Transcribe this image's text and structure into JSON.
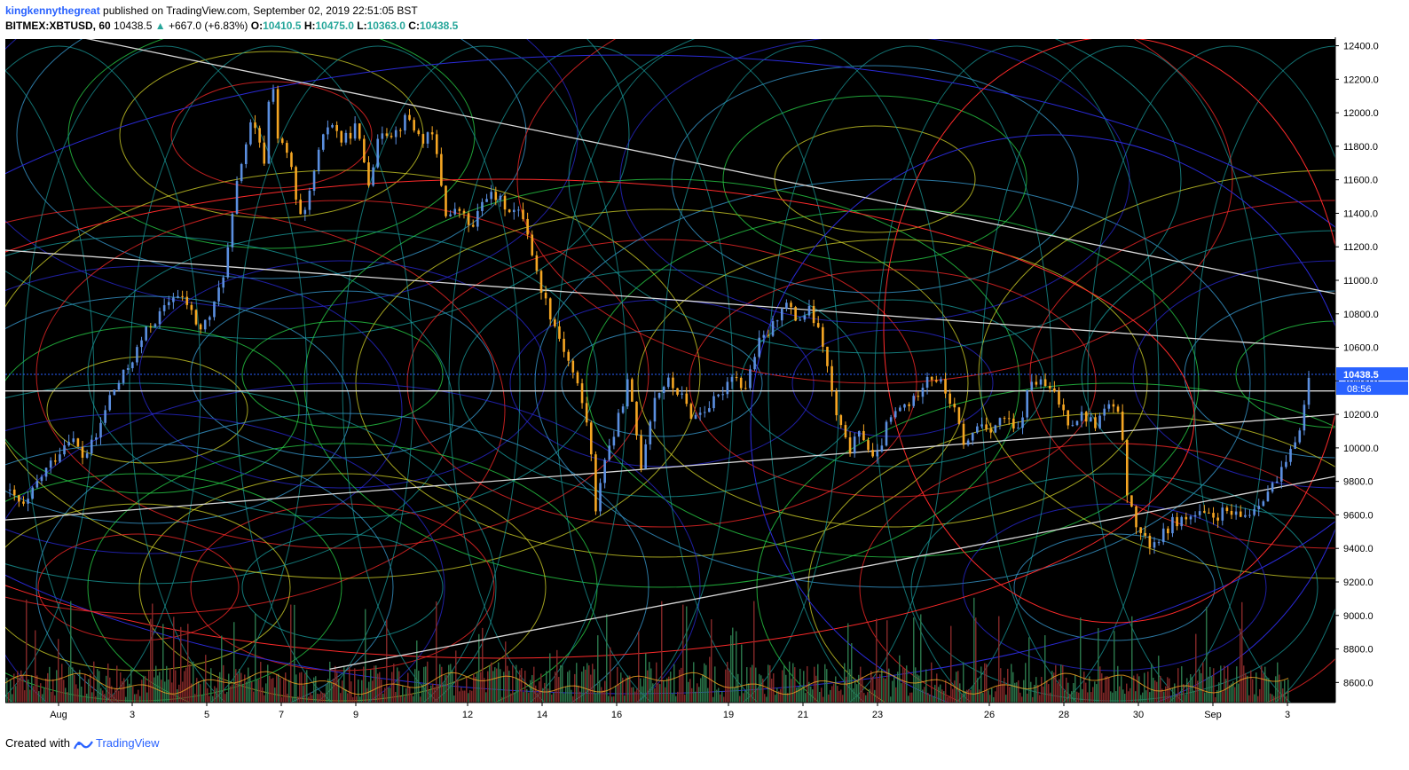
{
  "header": {
    "author": "kingkennythegreat",
    "published_text": " published on TradingView.com, September 02, 2019 22:51:05 BST",
    "symbol": "BITMEX:XBTUSD, 60",
    "last": "10438.5",
    "change": "+667.0 (+6.83%)",
    "o_label": "O:",
    "o_value": "10410.5",
    "h_label": "H:",
    "h_value": "10475.0",
    "l_label": "L:",
    "l_value": "10363.0",
    "c_label": "C:",
    "c_value": "10438.5"
  },
  "footer": {
    "created_with": "Created with",
    "brand": "TradingView"
  },
  "colors": {
    "background": "#000000",
    "up_candle": "#5b8fe0",
    "down_candle": "#f5a623",
    "volume_up": "#2e7d4f",
    "volume_down": "#8b2a2a",
    "price_tag": "#2962ff"
  },
  "chart_data": {
    "type": "candlestick",
    "symbol": "BITMEX:XBTUSD",
    "interval": "60",
    "ylim": [
      8480,
      12440
    ],
    "y_ticks": [
      "12400.0",
      "12200.0",
      "12000.0",
      "11800.0",
      "11600.0",
      "11400.0",
      "11200.0",
      "11000.0",
      "10800.0",
      "10600.0",
      "10400.0",
      "10200.0",
      "10000.0",
      "9800.0",
      "9600.0",
      "9400.0",
      "9200.0",
      "9000.0",
      "8800.0",
      "8600.0"
    ],
    "x_ticks": [
      "Aug",
      "3",
      "5",
      "7",
      "9",
      "12",
      "14",
      "16",
      "19",
      "21",
      "23",
      "26",
      "28",
      "30",
      "Sep",
      "3"
    ],
    "last_price_label": "10438.5",
    "countdown_label": "08:56",
    "price_path": [
      [
        0,
        9750
      ],
      [
        3,
        9640
      ],
      [
        5,
        9800
      ],
      [
        8,
        9960
      ],
      [
        10,
        10080
      ],
      [
        12,
        9940
      ],
      [
        14,
        10060
      ],
      [
        16,
        10300
      ],
      [
        18,
        10420
      ],
      [
        20,
        10560
      ],
      [
        22,
        10720
      ],
      [
        24,
        10800
      ],
      [
        26,
        10920
      ],
      [
        28,
        10860
      ],
      [
        30,
        10700
      ],
      [
        32,
        10820
      ],
      [
        34,
        11100
      ],
      [
        36,
        11650
      ],
      [
        38,
        11950
      ],
      [
        40,
        11700
      ],
      [
        41,
        12300
      ],
      [
        42,
        11850
      ],
      [
        44,
        11700
      ],
      [
        45,
        11400
      ],
      [
        46,
        11350
      ],
      [
        48,
        11720
      ],
      [
        50,
        11960
      ],
      [
        52,
        11820
      ],
      [
        54,
        11920
      ],
      [
        56,
        11600
      ],
      [
        58,
        11900
      ],
      [
        60,
        11880
      ],
      [
        62,
        11980
      ],
      [
        64,
        11840
      ],
      [
        66,
        11860
      ],
      [
        68,
        11380
      ],
      [
        70,
        11420
      ],
      [
        72,
        11300
      ],
      [
        74,
        11520
      ],
      [
        76,
        11480
      ],
      [
        78,
        11420
      ],
      [
        80,
        11380
      ],
      [
        82,
        11020
      ],
      [
        84,
        10800
      ],
      [
        86,
        10600
      ],
      [
        88,
        10400
      ],
      [
        90,
        10100
      ],
      [
        91,
        9600
      ],
      [
        92,
        9900
      ],
      [
        94,
        10100
      ],
      [
        96,
        10400
      ],
      [
        98,
        9900
      ],
      [
        100,
        10300
      ],
      [
        102,
        10400
      ],
      [
        104,
        10320
      ],
      [
        106,
        10180
      ],
      [
        108,
        10240
      ],
      [
        110,
        10300
      ],
      [
        112,
        10450
      ],
      [
        114,
        10350
      ],
      [
        116,
        10620
      ],
      [
        118,
        10700
      ],
      [
        120,
        10880
      ],
      [
        122,
        10760
      ],
      [
        124,
        10820
      ],
      [
        126,
        10620
      ],
      [
        128,
        10200
      ],
      [
        130,
        9980
      ],
      [
        132,
        10100
      ],
      [
        134,
        9900
      ],
      [
        136,
        10150
      ],
      [
        138,
        10240
      ],
      [
        140,
        10280
      ],
      [
        142,
        10440
      ],
      [
        144,
        10400
      ],
      [
        146,
        10250
      ],
      [
        148,
        10000
      ],
      [
        150,
        10150
      ],
      [
        152,
        10120
      ],
      [
        154,
        10180
      ],
      [
        156,
        10080
      ],
      [
        158,
        10400
      ],
      [
        160,
        10380
      ],
      [
        162,
        10300
      ],
      [
        164,
        10150
      ],
      [
        166,
        10200
      ],
      [
        168,
        10140
      ],
      [
        170,
        10260
      ],
      [
        172,
        10160
      ],
      [
        173,
        9700
      ],
      [
        174,
        9560
      ],
      [
        176,
        9420
      ],
      [
        178,
        9460
      ],
      [
        180,
        9560
      ],
      [
        182,
        9580
      ],
      [
        184,
        9600
      ],
      [
        186,
        9580
      ],
      [
        188,
        9620
      ],
      [
        190,
        9580
      ],
      [
        192,
        9620
      ],
      [
        194,
        9720
      ],
      [
        196,
        9800
      ],
      [
        198,
        9950
      ],
      [
        200,
        10200
      ],
      [
        201,
        10440
      ]
    ],
    "trend_lines": [
      {
        "from": {
          "t": -20,
          "price": 12700
        },
        "to": {
          "t": 205,
          "price": 10920
        }
      },
      {
        "from": {
          "t": 0,
          "price": 11180
        },
        "to": {
          "t": 205,
          "price": 10590
        }
      },
      {
        "from": {
          "t": 0,
          "price": 10340
        },
        "to": {
          "t": 205,
          "price": 10340
        }
      },
      {
        "from": {
          "t": 0,
          "price": 9570
        },
        "to": {
          "t": 205,
          "price": 10200
        }
      },
      {
        "from": {
          "t": 50,
          "price": 8680
        },
        "to": {
          "t": 205,
          "price": 9830
        }
      }
    ]
  }
}
